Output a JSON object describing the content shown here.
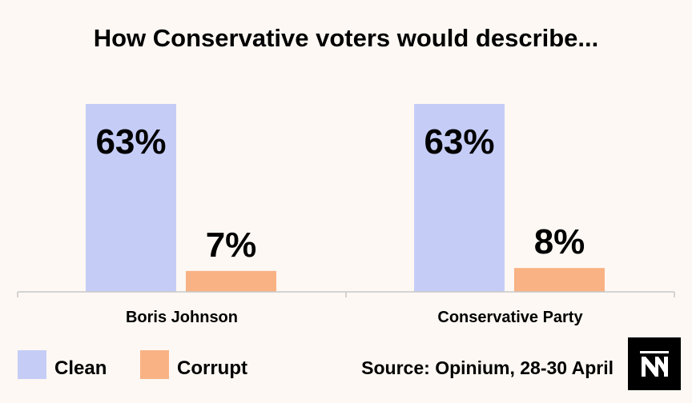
{
  "chart_data": {
    "type": "bar",
    "title": "How Conservative voters would describe...",
    "categories": [
      "Boris Johnson",
      "Conservative Party"
    ],
    "series": [
      {
        "name": "Clean",
        "values": [
          63,
          63
        ],
        "labels": [
          "63%",
          "63%"
        ],
        "color": "#c5cdf7"
      },
      {
        "name": "Corrupt",
        "values": [
          7,
          8
        ],
        "labels": [
          "7%",
          "8%"
        ],
        "color": "#f9b283"
      }
    ],
    "ylim": [
      0,
      63
    ],
    "grid": false,
    "legend": "bottom-left"
  },
  "source": "Source: Opinium, 28-30 April",
  "logo": {
    "icon": "nm-logo-icon",
    "text": "NM",
    "color": "#000000"
  }
}
